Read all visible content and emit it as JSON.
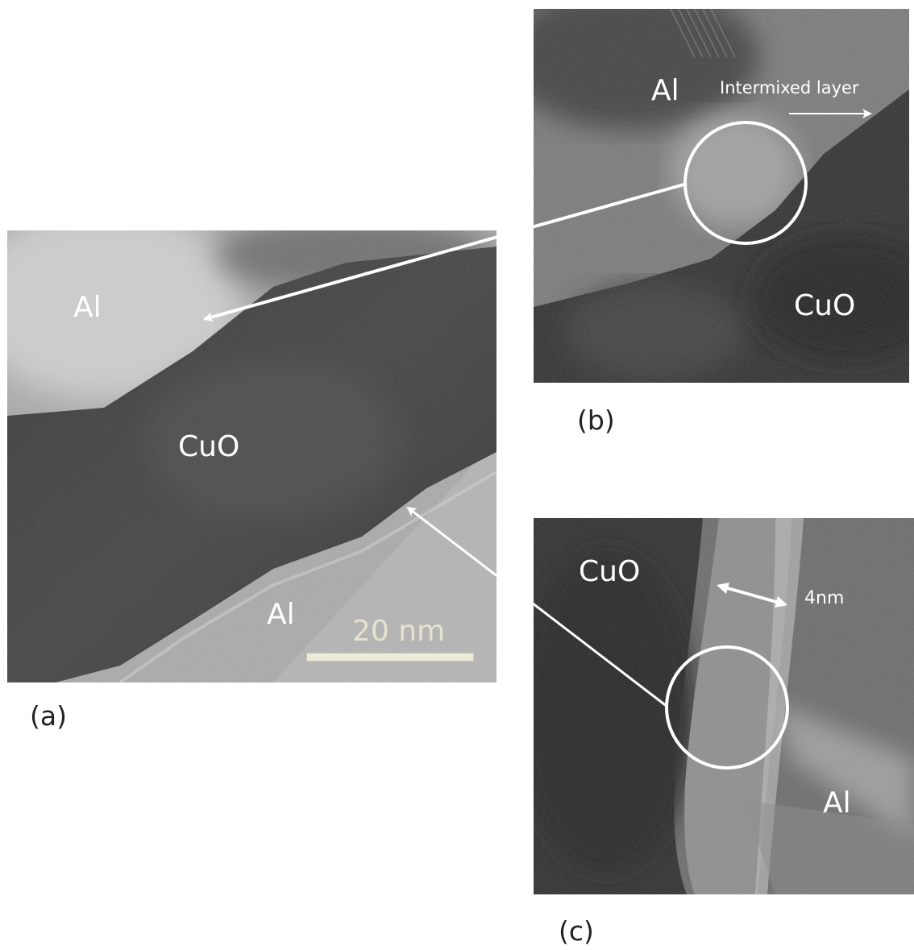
{
  "panels": {
    "a": {
      "caption": "(a)",
      "labels": {
        "al_top": "Al",
        "cuo": "CuO",
        "al_bottom": "Al"
      },
      "scale_bar": {
        "label": "20 nm"
      }
    },
    "b": {
      "caption": "(b)",
      "labels": {
        "al": "Al",
        "cuo": "CuO",
        "intermixed": "Intermixed layer"
      }
    },
    "c": {
      "caption": "(c)",
      "labels": {
        "cuo": "CuO",
        "al": "Al",
        "thickness": "4nm"
      }
    }
  },
  "colors": {
    "background": "#ffffff",
    "label": "#ffffff",
    "scale_bar_text": "#e6e2cf",
    "caption": "#222222"
  }
}
